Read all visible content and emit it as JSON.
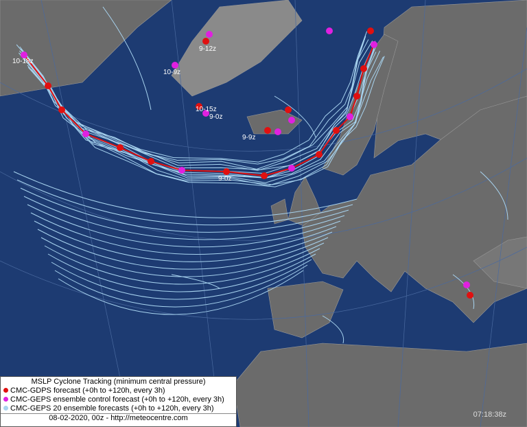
{
  "legend": {
    "title": "MSLP Cyclone Tracking (minimum central pressure)",
    "items": [
      {
        "label": "CMC-GDPS forecast (+0h to +120h, every 3h)",
        "color": "#e01010"
      },
      {
        "label": "CMC-GEPS ensemble control forecast (+0h to +120h, every 3h)",
        "color": "#e020e0"
      },
      {
        "label": "CMC-GEPS 20 ensemble forecasts (+0h to +120h, every 3h)",
        "color": "#a8d4f0"
      }
    ]
  },
  "footer": "08-02-2020, 00z - http://meteocentre.com",
  "timestamp": "07:18:38z",
  "map_labels": [
    "10-18z",
    "9-12z",
    "10-9z",
    "10-15z",
    "9-0z",
    "9-9z",
    "9-0z"
  ]
}
